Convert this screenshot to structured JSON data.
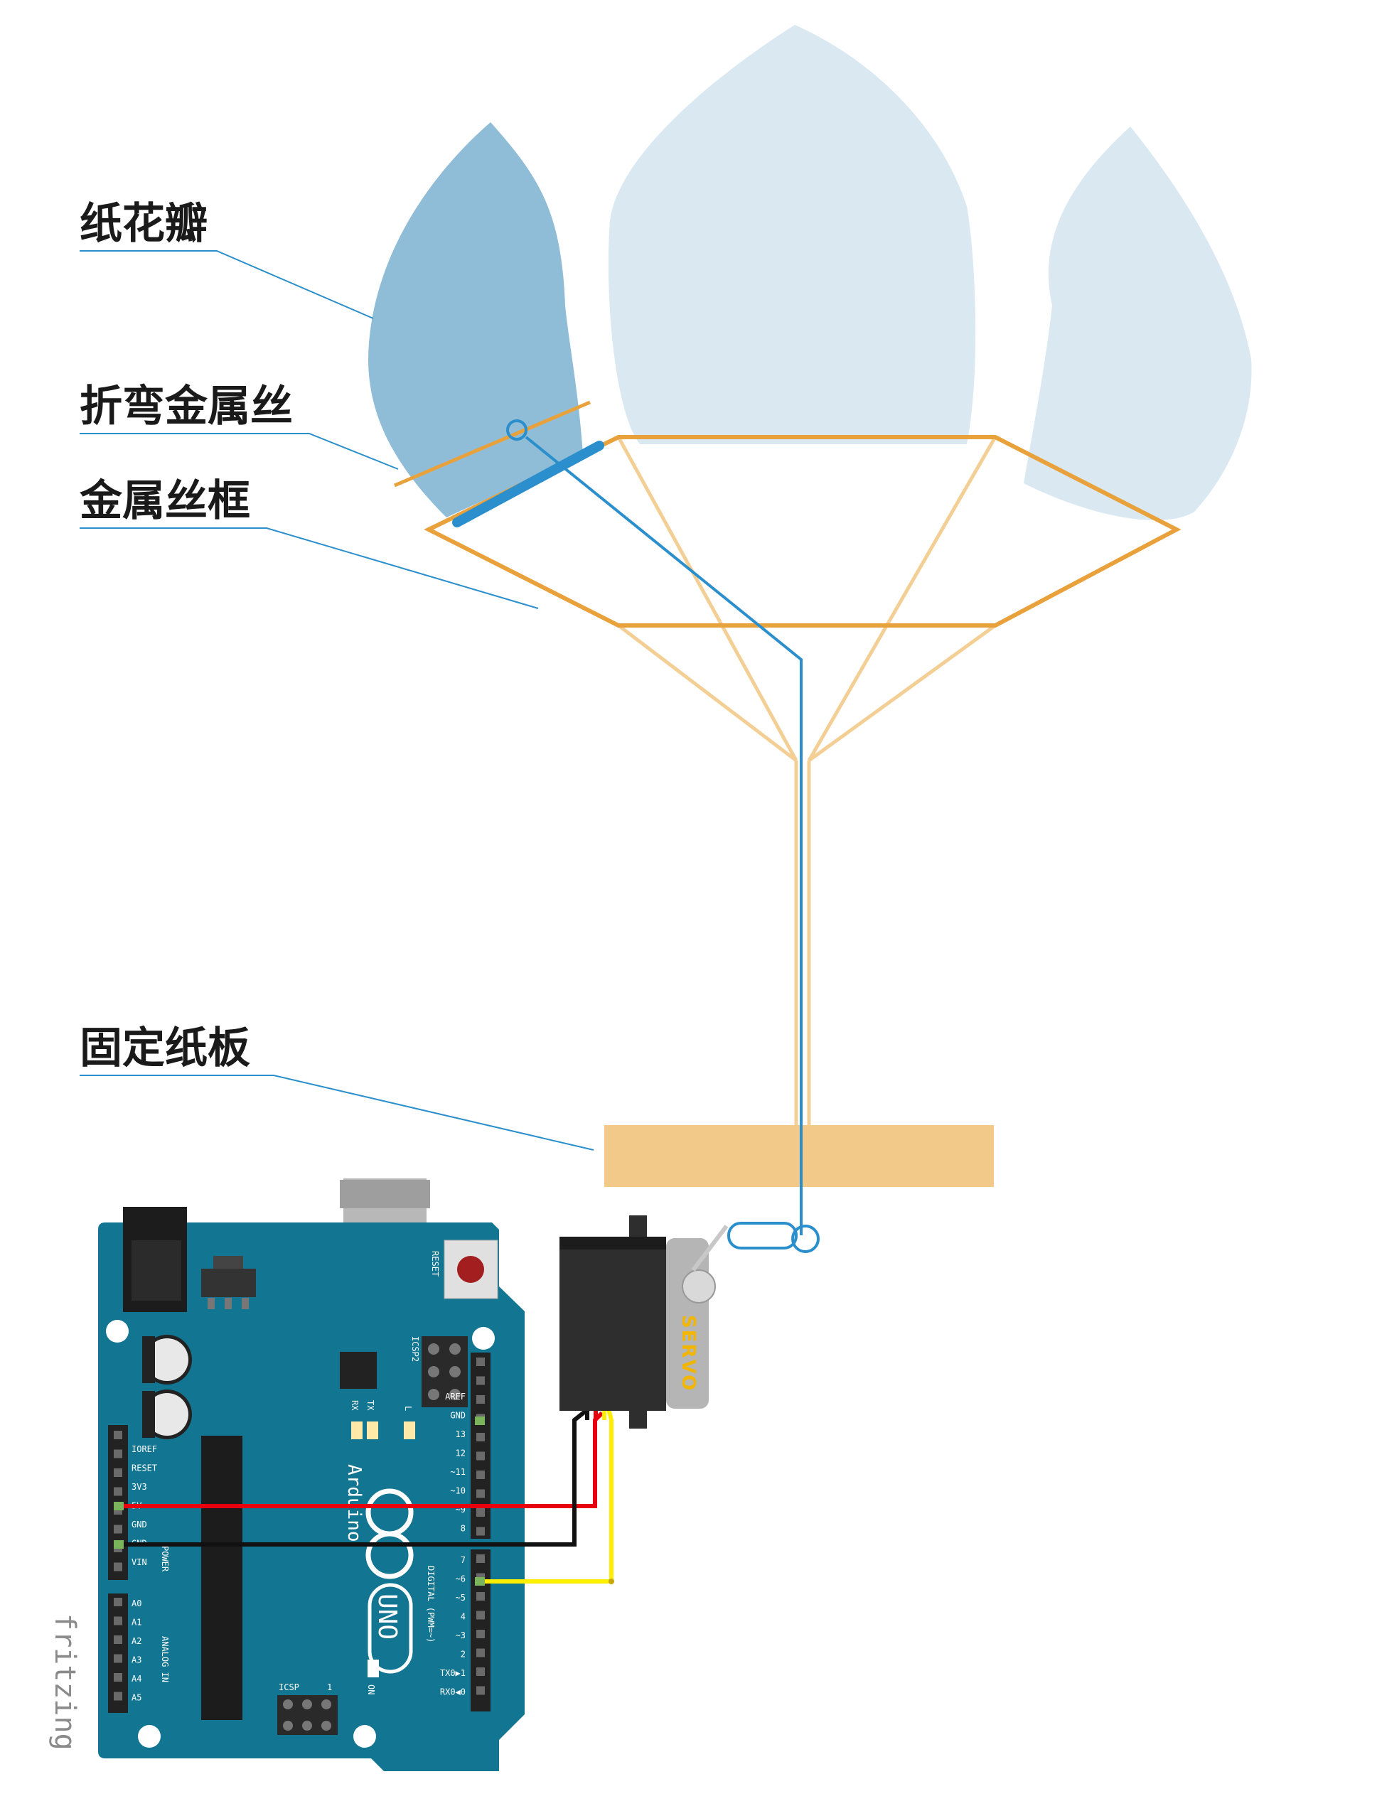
{
  "labels": {
    "petal": "纸花瓣",
    "bent_wire": "折弯金属丝",
    "wire_frame": "金属丝框",
    "base_board": "固定纸板"
  },
  "arduino": {
    "reset": "RESET",
    "icsp2": "ICSP2",
    "icsp": "ICSP",
    "icsp_pin1": "1",
    "tx": "TX",
    "rx": "RX",
    "l": "L",
    "on": "ON",
    "brand": "Arduino",
    "model": "UNO",
    "digital_caption": "DIGITAL (PWM=~)",
    "power_caption": "POWER",
    "analog_caption": "ANALOG IN",
    "power_pins": [
      "IOREF",
      "RESET",
      "3V3",
      "5V",
      "GND",
      "GND",
      "VIN"
    ],
    "analog_pins": [
      "A0",
      "A1",
      "A2",
      "A3",
      "A4",
      "A5"
    ],
    "digital_pins_top": [
      "AREF",
      "GND",
      "13",
      "12",
      "~11",
      "~10",
      "~9",
      "8"
    ],
    "digital_pins_bottom": [
      "7",
      "~6",
      "~5",
      "4",
      "~3",
      "2",
      "TX0▶1",
      "RX0◀0"
    ]
  },
  "servo": {
    "label": "SERVO"
  },
  "watermark": "fritzing",
  "colors": {
    "petal_dark": "#8fbcd6",
    "petal_light": "#d9e8f1",
    "wire_orange": "#e9a23b",
    "wire_blue": "#2a8fcc",
    "board_tan": "#f3c98a",
    "arduino_teal": "#127591",
    "wire_red": "#e8000f",
    "wire_black": "#111111",
    "wire_yellow": "#ffee00"
  }
}
